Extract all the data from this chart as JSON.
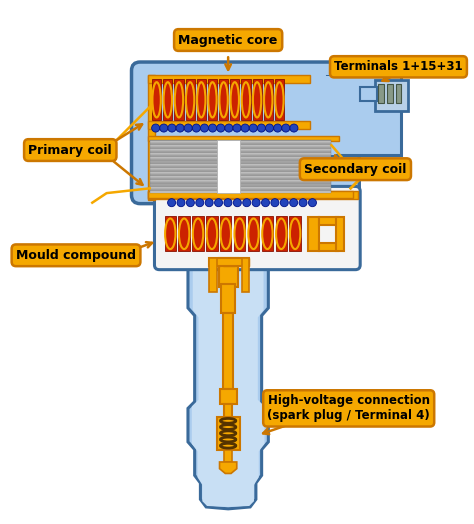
{
  "bg_color": "#ffffff",
  "light_blue": "#aaccee",
  "blue_mid": "#88aacc",
  "blue_border": "#3a6a9a",
  "blue_dark": "#2255aa",
  "orange": "#f5a800",
  "dark_orange": "#cc7700",
  "red_coil": "#cc2200",
  "dark_red": "#881100",
  "gray_lam1": "#aaaaaa",
  "gray_lam2": "#cccccc",
  "blue_dot": "#2244bb",
  "blue_dot_border": "#001188",
  "white_fill": "#f4f4f4",
  "label_bg": "#f5a800",
  "label_border": "#cc7700",
  "label_text": "#000000",
  "labels": {
    "magnetic_core": "Magnetic core",
    "terminals": "Terminals 1+15+31",
    "primary_coil": "Primary coil",
    "secondary_coil": "Secondary coil",
    "mould_compound": "Mould compound",
    "hv_connection": "High-voltage connection\n(spark plug / Terminal 4)"
  }
}
